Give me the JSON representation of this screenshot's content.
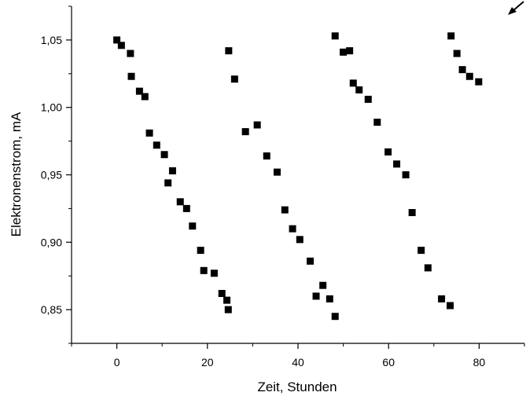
{
  "chart_data": {
    "type": "scatter",
    "xlabel": "Zeit, Stunden",
    "ylabel": "Elektronenstrom, mA",
    "xlim": [
      -10,
      90
    ],
    "ylim": [
      0.825,
      1.075
    ],
    "xticks": [
      0,
      20,
      40,
      60,
      80
    ],
    "xtick_labels": [
      "0",
      "20",
      "40",
      "60",
      "80"
    ],
    "yticks": [
      0.85,
      0.9,
      0.95,
      1.0,
      1.05
    ],
    "ytick_labels": [
      "0,85",
      "0,90",
      "0,95",
      "1,00",
      "1,05"
    ],
    "grid": false,
    "marker": "square",
    "color": "#000000",
    "corner_arrow": "arrow-icon",
    "series": [
      {
        "points": [
          [
            0.0,
            1.05
          ],
          [
            1.0,
            1.046
          ],
          [
            3.0,
            1.04
          ],
          [
            3.2,
            1.023
          ],
          [
            5.0,
            1.012
          ],
          [
            6.2,
            1.008
          ],
          [
            7.2,
            0.981
          ],
          [
            8.8,
            0.972
          ],
          [
            10.5,
            0.965
          ],
          [
            11.3,
            0.944
          ],
          [
            12.3,
            0.953
          ],
          [
            14.0,
            0.93
          ],
          [
            15.4,
            0.925
          ],
          [
            16.7,
            0.912
          ],
          [
            18.5,
            0.894
          ],
          [
            19.2,
            0.879
          ],
          [
            21.5,
            0.877
          ],
          [
            23.2,
            0.862
          ],
          [
            24.3,
            0.857
          ],
          [
            24.6,
            0.85
          ],
          [
            24.7,
            1.042
          ],
          [
            26.0,
            1.021
          ],
          [
            28.4,
            0.982
          ],
          [
            31.0,
            0.987
          ],
          [
            33.1,
            0.964
          ],
          [
            35.4,
            0.952
          ],
          [
            37.1,
            0.924
          ],
          [
            38.8,
            0.91
          ],
          [
            40.4,
            0.902
          ],
          [
            42.7,
            0.886
          ],
          [
            44.0,
            0.86
          ],
          [
            45.5,
            0.868
          ],
          [
            47.0,
            0.858
          ],
          [
            48.2,
            0.845
          ],
          [
            48.2,
            1.053
          ],
          [
            50.0,
            1.041
          ],
          [
            51.4,
            1.042
          ],
          [
            52.2,
            1.018
          ],
          [
            53.5,
            1.013
          ],
          [
            55.5,
            1.006
          ],
          [
            57.5,
            0.989
          ],
          [
            59.9,
            0.967
          ],
          [
            61.8,
            0.958
          ],
          [
            63.8,
            0.95
          ],
          [
            65.2,
            0.922
          ],
          [
            67.2,
            0.894
          ],
          [
            68.7,
            0.881
          ],
          [
            71.7,
            0.858
          ],
          [
            73.6,
            0.853
          ],
          [
            73.8,
            1.053
          ],
          [
            75.1,
            1.04
          ],
          [
            76.3,
            1.028
          ],
          [
            77.9,
            1.023
          ],
          [
            79.9,
            1.019
          ]
        ]
      }
    ]
  }
}
